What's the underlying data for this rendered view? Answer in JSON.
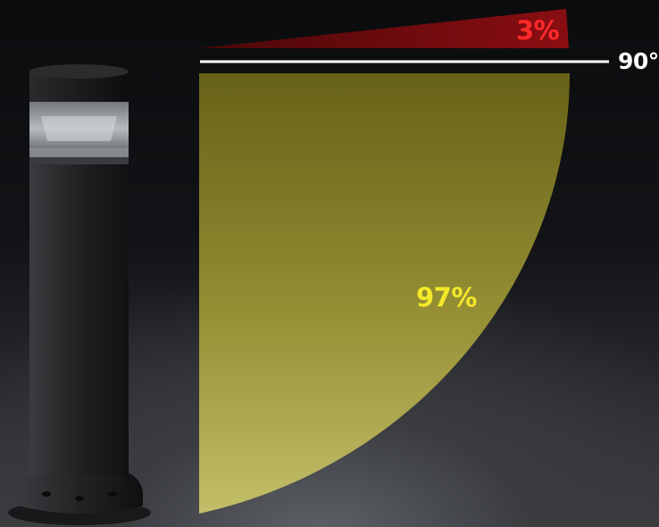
{
  "distribution": {
    "upward_percent": 3,
    "downward_percent": 97,
    "upward_label": "3%",
    "downward_label": "97%",
    "horizon_label": "90°"
  },
  "colors": {
    "upward_fill": "#8a0e12",
    "upward_text": "#ff2a2a",
    "downward_fill": "#c9c23a",
    "downward_text": "#f3e82a",
    "horizon_line": "#ffffff",
    "bollard_body": "#2a2b2d"
  },
  "product": {
    "icon": "bollard-light-icon"
  }
}
